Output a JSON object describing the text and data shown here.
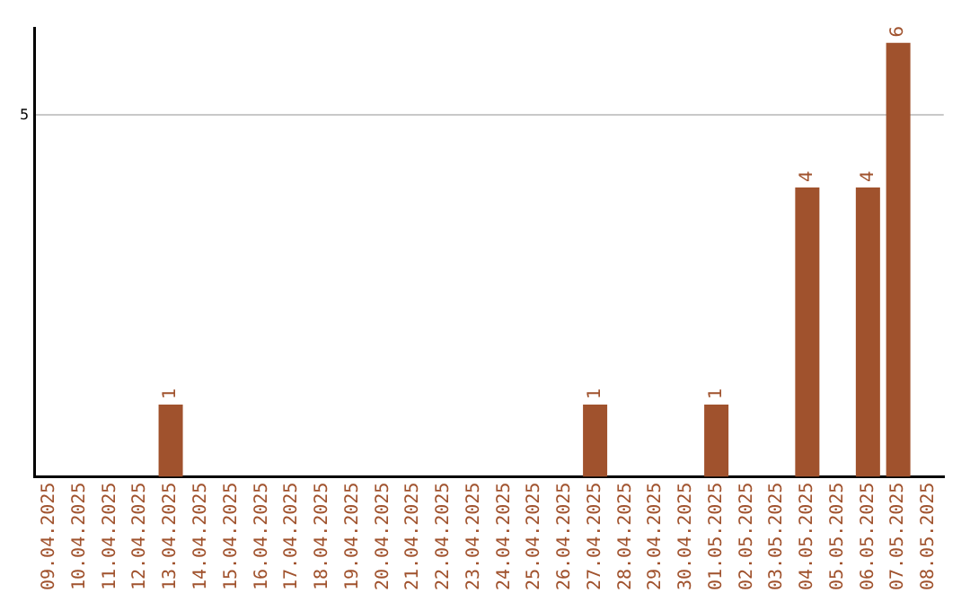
{
  "chart_data": {
    "type": "bar",
    "categories": [
      "09.04.2025",
      "10.04.2025",
      "11.04.2025",
      "12.04.2025",
      "13.04.2025",
      "14.04.2025",
      "15.04.2025",
      "16.04.2025",
      "17.04.2025",
      "18.04.2025",
      "19.04.2025",
      "20.04.2025",
      "21.04.2025",
      "22.04.2025",
      "23.04.2025",
      "24.04.2025",
      "25.04.2025",
      "26.04.2025",
      "27.04.2025",
      "28.04.2025",
      "29.04.2025",
      "30.04.2025",
      "01.05.2025",
      "02.05.2025",
      "03.05.2025",
      "04.05.2025",
      "05.05.2025",
      "06.05.2025",
      "07.05.2025",
      "08.05.2025"
    ],
    "values": [
      0,
      0,
      0,
      0,
      1,
      0,
      0,
      0,
      0,
      0,
      0,
      0,
      0,
      0,
      0,
      0,
      0,
      0,
      1,
      0,
      0,
      0,
      1,
      0,
      0,
      4,
      0,
      4,
      6,
      0
    ],
    "value_labels": [
      null,
      null,
      null,
      null,
      "1",
      null,
      null,
      null,
      null,
      null,
      null,
      null,
      null,
      null,
      null,
      null,
      null,
      null,
      "1",
      null,
      null,
      null,
      "1",
      null,
      null,
      "4",
      null,
      "4",
      "6",
      null
    ],
    "color": "#a0522d",
    "ylim": [
      0,
      6.2
    ],
    "yticks": [
      5
    ],
    "grid": "y",
    "legend": false
  }
}
